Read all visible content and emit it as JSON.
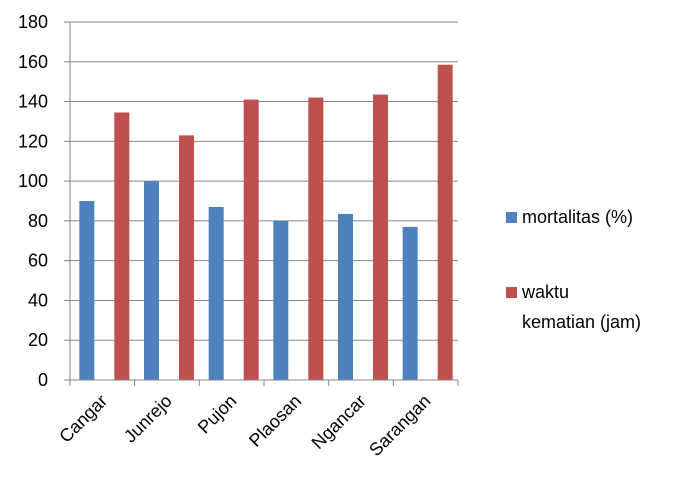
{
  "chart_data": {
    "type": "bar",
    "categories": [
      "Cangar",
      "Junrejo",
      "Pujon",
      "Plaosan",
      "Ngancar",
      "Sarangan"
    ],
    "series": [
      {
        "name": "mortalitas (%)",
        "values": [
          90,
          100,
          87,
          80,
          83.5,
          77
        ],
        "color": "#4F81BD"
      },
      {
        "name": "waktu kematian (jam)",
        "values": [
          134.5,
          123,
          141,
          142,
          143.5,
          158.5
        ],
        "color": "#C0504D"
      }
    ],
    "ylim": [
      0,
      180
    ],
    "yticks": [
      0,
      20,
      40,
      60,
      80,
      100,
      120,
      140,
      160,
      180
    ],
    "grid": true,
    "legend": {
      "position": "right",
      "items": [
        {
          "lines": [
            "mortalitas (%)"
          ]
        },
        {
          "lines": [
            "waktu",
            "kematian (jam)"
          ]
        }
      ]
    },
    "title": "",
    "xlabel": "",
    "ylabel": ""
  }
}
